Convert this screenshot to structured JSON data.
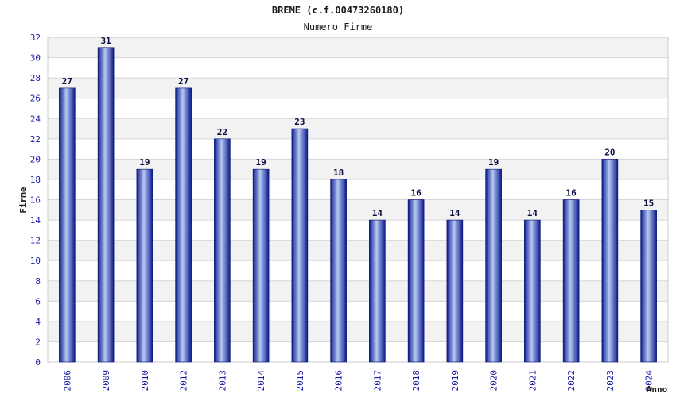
{
  "chart_data": {
    "type": "bar",
    "title": "BREME (c.f.00473260180)",
    "subtitle": "Numero Firme",
    "xlabel": "Anno",
    "ylabel": "Firme",
    "categories": [
      "2006",
      "2009",
      "2010",
      "2012",
      "2013",
      "2014",
      "2015",
      "2016",
      "2017",
      "2018",
      "2019",
      "2020",
      "2021",
      "2022",
      "2023",
      "2024"
    ],
    "values": [
      27,
      31,
      19,
      27,
      22,
      19,
      23,
      18,
      14,
      16,
      14,
      19,
      14,
      16,
      20,
      15
    ],
    "ylim": [
      0,
      32
    ],
    "yticks": [
      0,
      2,
      4,
      6,
      8,
      10,
      12,
      14,
      16,
      18,
      20,
      22,
      24,
      26,
      28,
      30,
      32
    ],
    "grid": true,
    "colors": {
      "bar_dark": "#0a1a8c",
      "bar_light": "#b8c8f4",
      "band_alt": "#f2f2f2",
      "grid_line": "#d6d6d6",
      "tick_text": "#1a1aa8"
    }
  }
}
